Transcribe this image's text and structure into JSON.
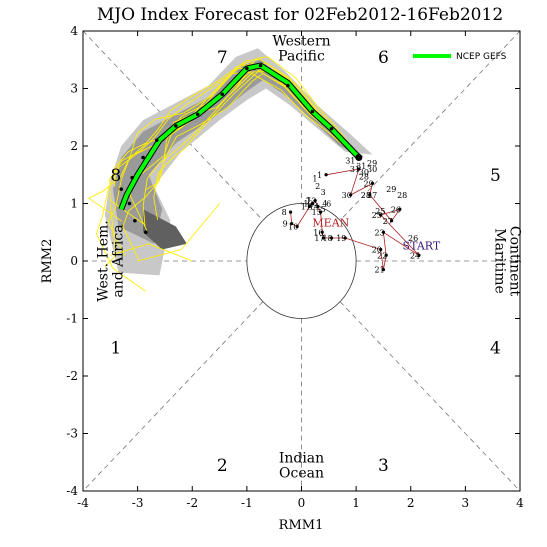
{
  "chart_data": {
    "type": "line",
    "title": "MJO Index Forecast for 02Feb2012-16Feb2012",
    "xlabel": "RMM1",
    "ylabel": "RMM2",
    "xlim": [
      -4,
      4
    ],
    "ylim": [
      -4,
      4
    ],
    "ticks": [
      -4,
      -3,
      -2,
      -1,
      0,
      1,
      2,
      3,
      4
    ],
    "grid": "diagonal dashed phase dividers",
    "legend_placement": "top-right",
    "legend": [
      {
        "name": "NCEP GEFS",
        "color": "#00ff00"
      }
    ],
    "phase_labels": [
      {
        "label": "1",
        "x": -3.4,
        "y": -1.5
      },
      {
        "label": "2",
        "x": -1.45,
        "y": -3.55
      },
      {
        "label": "3",
        "x": 1.5,
        "y": -3.55
      },
      {
        "label": "4",
        "x": 3.55,
        "y": -1.5
      },
      {
        "label": "5",
        "x": 3.55,
        "y": 1.5
      },
      {
        "label": "6",
        "x": 1.5,
        "y": 3.55
      },
      {
        "label": "7",
        "x": -1.45,
        "y": 3.55
      },
      {
        "label": "8",
        "x": -3.4,
        "y": 1.5
      }
    ],
    "regions": {
      "top": [
        "Western",
        "Pacific"
      ],
      "bottom": [
        "Indian",
        "Ocean"
      ],
      "left": [
        "West. Hem.",
        "and Africa"
      ],
      "right": [
        "Maritime",
        "Continent"
      ]
    },
    "annotations": {
      "start": "START",
      "mean": "MEAN"
    },
    "observed": {
      "color": "#b02020",
      "days": [
        "8",
        "9",
        "10",
        "11",
        "12",
        "13",
        "14",
        "15",
        "16",
        "17",
        "18",
        "19",
        "20",
        "21",
        "22",
        "23",
        "24",
        "25",
        "26",
        "27",
        "28",
        "29",
        "30",
        "31",
        "1"
      ],
      "x": [
        -0.2,
        -0.18,
        -0.08,
        0.15,
        0.2,
        0.25,
        0.3,
        0.35,
        0.38,
        0.4,
        0.55,
        0.8,
        1.45,
        1.5,
        1.55,
        1.5,
        2.15,
        1.45,
        1.8,
        1.65,
        1.25,
        1.3,
        0.9,
        1.05,
        0.45
      ],
      "y": [
        0.85,
        0.65,
        0.6,
        0.95,
        1.0,
        1.05,
        0.95,
        0.85,
        0.5,
        0.4,
        0.4,
        0.4,
        0.2,
        -0.15,
        0.1,
        0.5,
        0.1,
        0.8,
        0.9,
        0.7,
        1.15,
        1.35,
        1.15,
        1.6,
        1.5
      ]
    },
    "observed_extra_labels": [
      {
        "label": "1",
        "x": 0.2,
        "y": 1.38
      },
      {
        "label": "2",
        "x": 0.25,
        "y": 1.25
      },
      {
        "label": "3",
        "x": 0.35,
        "y": 1.15
      },
      {
        "label": "4",
        "x": 0.38,
        "y": 0.95
      },
      {
        "label": "5",
        "x": 0.35,
        "y": 0.85
      },
      {
        "label": "6",
        "x": 0.45,
        "y": 0.95
      },
      {
        "label": "7",
        "x": 0.08,
        "y": 1.0
      },
      {
        "label": "25",
        "x": 1.35,
        "y": 0.82
      },
      {
        "label": "26",
        "x": 1.95,
        "y": 0.35
      },
      {
        "label": "27",
        "x": 1.2,
        "y": 1.1
      },
      {
        "label": "28",
        "x": 1.75,
        "y": 1.1
      },
      {
        "label": "29",
        "x": 1.55,
        "y": 1.2
      },
      {
        "label": "30",
        "x": 1.2,
        "y": 1.55
      },
      {
        "label": "31",
        "x": 0.8,
        "y": 1.7
      },
      {
        "label": "31",
        "x": 1.0,
        "y": 1.6
      },
      {
        "label": "30",
        "x": 1.05,
        "y": 1.5
      },
      {
        "label": "28",
        "x": 1.05,
        "y": 1.42
      },
      {
        "label": "29",
        "x": 1.2,
        "y": 1.65
      }
    ],
    "forecast_mean": {
      "color": "#00ff00",
      "x": [
        1.05,
        0.85,
        0.55,
        0.2,
        -0.25,
        -0.75,
        -1.0,
        -1.45,
        -1.9,
        -2.3,
        -2.6,
        -2.8,
        -3.0,
        -3.2,
        -3.3
      ],
      "y": [
        1.8,
        2.0,
        2.3,
        2.6,
        3.1,
        3.4,
        3.35,
        2.9,
        2.55,
        2.35,
        2.1,
        1.8,
        1.5,
        1.15,
        0.9
      ]
    },
    "forecast_dots": {
      "x": [
        1.05,
        0.55,
        0.2,
        -0.25,
        -0.75,
        -1.0,
        -1.45,
        -1.9,
        -2.3,
        -2.65,
        -2.9,
        -3.1,
        -3.3,
        -3.15,
        -3.05,
        -2.85
      ],
      "y": [
        1.8,
        2.3,
        2.6,
        3.05,
        3.4,
        3.35,
        2.9,
        2.55,
        2.35,
        2.1,
        1.8,
        1.45,
        1.25,
        1.0,
        0.7,
        0.5
      ]
    }
  }
}
